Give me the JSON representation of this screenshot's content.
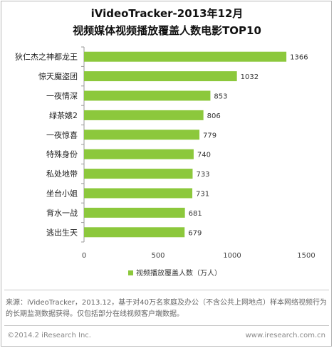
{
  "title_line1": "iVideoTracker-2013年12月",
  "title_line2": "视频媒体视频播放覆盖人数电影TOP10",
  "chart_data": {
    "type": "bar",
    "orientation": "horizontal",
    "categories": [
      "狄仁杰之神都龙王",
      "惊天魔盗团",
      "一夜情深",
      "绿茶婊2",
      "一夜惊喜",
      "特殊身份",
      "私处地带",
      "坐台小姐",
      "背水一战",
      "逃出生天"
    ],
    "values": [
      1366,
      1032,
      853,
      806,
      779,
      740,
      733,
      731,
      681,
      679
    ],
    "xlim": [
      0,
      1500
    ],
    "xticks": [
      0,
      500,
      1000,
      1500
    ],
    "legend": "视频播放覆盖人数（万人）",
    "legend_position": "bottom",
    "grid": false,
    "bar_color": "#8cc83c"
  },
  "source_text": "来源：iVideoTracker，2013.12，基于对40万名家庭及办公（不含公共上网地点）样本网络视频行为的长期监测数据获得。仅包括部分在线视频客户端数据。",
  "copyright": "©2014.2 iResearch Inc.",
  "website": "www.iresearch.com.cn"
}
